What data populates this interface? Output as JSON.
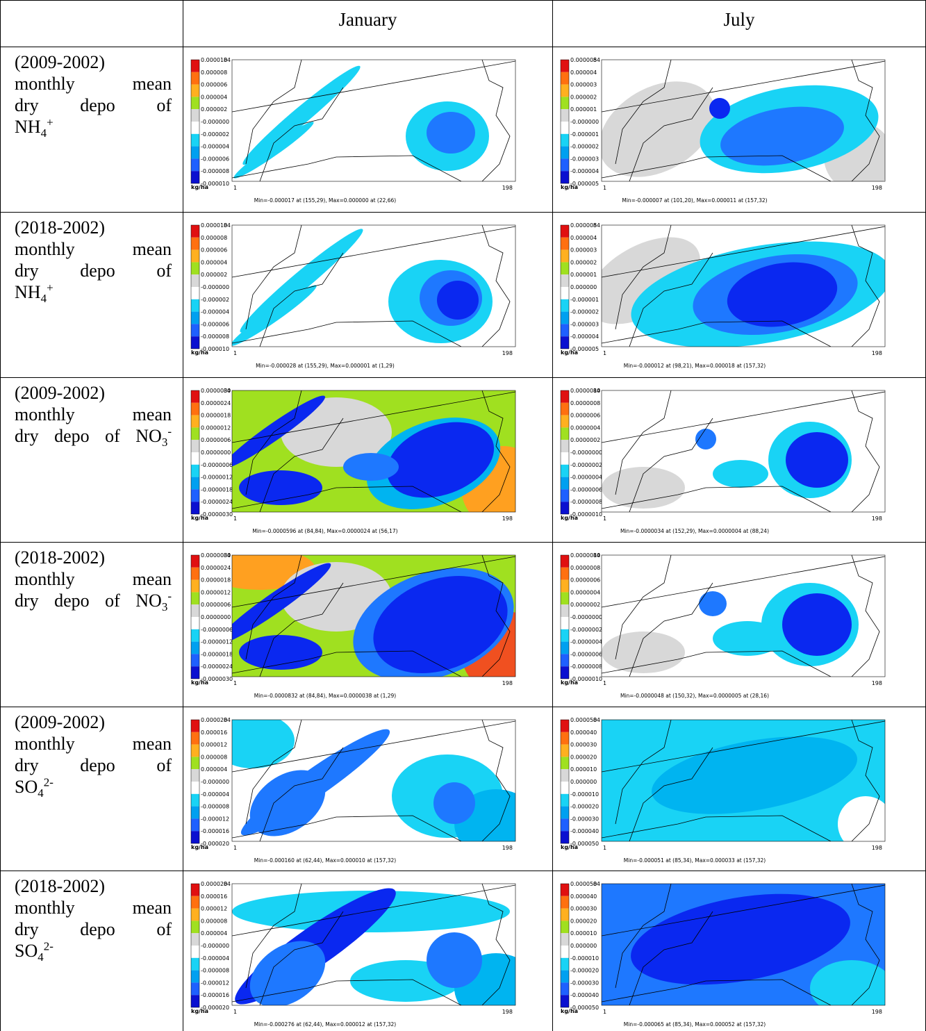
{
  "header": {
    "january": "January",
    "july": "July"
  },
  "map_axes": {
    "unit": "kg/ha",
    "x_start": "1",
    "x_end": "198",
    "y_end": "84"
  },
  "rows": [
    {
      "label": [
        [
          "(2009-2002)"
        ],
        [
          "monthly mean"
        ],
        [
          "dry depo of"
        ],
        [
          "NH",
          {
            "sub": "4"
          },
          {
            "sup": "+"
          }
        ]
      ],
      "january": {
        "colorbar": [
          "0.000010",
          "0.000008",
          "0.000006",
          "0.000004",
          "0.000002",
          "-0.000000",
          "-0.000002",
          "-0.000004",
          "-0.000006",
          "-0.000008",
          "-0.000010"
        ],
        "caption": "Min=-0.000017 at (155,29), Max=0.000000 at (22,66)"
      },
      "july": {
        "colorbar": [
          "0.000005",
          "0.000004",
          "0.000003",
          "0.000002",
          "0.000001",
          "-0.000000",
          "-0.000001",
          "-0.000002",
          "-0.000003",
          "-0.000004",
          "-0.000005"
        ],
        "caption": "Min=-0.000007 at (101,20), Max=0.000011 at (157,32)"
      }
    },
    {
      "label": [
        [
          "(2018-2002)"
        ],
        [
          "monthly mean"
        ],
        [
          "dry depo of"
        ],
        [
          "NH",
          {
            "sub": "4"
          },
          {
            "sup": "+"
          }
        ]
      ],
      "january": {
        "colorbar": [
          "0.000010",
          "0.000008",
          "0.000006",
          "0.000004",
          "0.000002",
          "-0.000000",
          "-0.000002",
          "-0.000004",
          "-0.000006",
          "-0.000008",
          "-0.000010"
        ],
        "caption": "Min=-0.000028 at (155,29), Max=0.000001 at (1,29)"
      },
      "july": {
        "colorbar": [
          "0.000005",
          "0.000004",
          "0.000003",
          "0.000002",
          "0.000001",
          "0.000000",
          "-0.000001",
          "-0.000002",
          "-0.000003",
          "-0.000004",
          "-0.000005"
        ],
        "caption": "Min=-0.000012 at (98,21), Max=0.000018 at (157,32)"
      }
    },
    {
      "label": [
        [
          "(2009-2002)"
        ],
        [
          "monthly mean"
        ],
        [
          "dry depo of NO",
          {
            "sub": "3"
          },
          {
            "sup": "-"
          }
        ]
      ],
      "january": {
        "colorbar": [
          "0.0000030",
          "0.0000024",
          "0.0000018",
          "0.0000012",
          "0.0000006",
          "0.0000000",
          "-0.0000006",
          "-0.0000012",
          "-0.0000018",
          "-0.0000024",
          "-0.0000030"
        ],
        "caption": "Min=-0.0000596 at (84,84), Max=0.0000024 at (56,17)"
      },
      "july": {
        "colorbar": [
          "0.0000010",
          "0.0000008",
          "0.0000006",
          "0.0000004",
          "0.0000002",
          "-0.0000000",
          "-0.0000002",
          "-0.0000004",
          "-0.0000006",
          "-0.0000008",
          "-0.0000010"
        ],
        "caption": "Min=-0.0000034 at (152,29), Max=0.0000004 at (88,24)"
      }
    },
    {
      "label": [
        [
          "(2018-2002)"
        ],
        [
          "monthly mean"
        ],
        [
          "dry depo of NO",
          {
            "sub": "3"
          },
          {
            "sup": "-"
          }
        ]
      ],
      "january": {
        "colorbar": [
          "0.0000030",
          "0.0000024",
          "0.0000018",
          "0.0000012",
          "0.0000006",
          "0.0000000",
          "-0.0000006",
          "-0.0000012",
          "-0.0000018",
          "-0.0000024",
          "-0.0000030"
        ],
        "caption": "Min=-0.0000832 at (84,84), Max=0.0000038 at (1,29)"
      },
      "july": {
        "colorbar": [
          "0.0000010",
          "0.0000008",
          "0.0000006",
          "0.0000004",
          "0.0000002",
          "-0.0000000",
          "-0.0000002",
          "-0.0000004",
          "-0.0000006",
          "-0.0000008",
          "-0.0000010"
        ],
        "caption": "Min=-0.0000048 at (150,32), Max=0.0000005 at (28,16)"
      }
    },
    {
      "label": [
        [
          "(2009-2002)"
        ],
        [
          "monthly mean"
        ],
        [
          "dry depo of"
        ],
        [
          "SO",
          {
            "sub": "4"
          },
          {
            "sup": "2-"
          }
        ]
      ],
      "january": {
        "colorbar": [
          "0.000020",
          "0.000016",
          "0.000012",
          "0.000008",
          "0.000004",
          "-0.000000",
          "-0.000004",
          "-0.000008",
          "-0.000012",
          "-0.000016",
          "-0.000020"
        ],
        "caption": "Min=-0.000160 at (62,44), Max=0.000010 at (157,32)"
      },
      "july": {
        "colorbar": [
          "0.000050",
          "0.000040",
          "0.000030",
          "0.000020",
          "0.000010",
          "0.000000",
          "-0.000010",
          "-0.000020",
          "-0.000030",
          "-0.000040",
          "-0.000050"
        ],
        "caption": "Min=-0.000051 at (85,34), Max=0.000033 at (157,32)"
      }
    },
    {
      "label": [
        [
          "(2018-2002)"
        ],
        [
          "monthly mean"
        ],
        [
          "dry depo of"
        ],
        [
          "SO",
          {
            "sub": "4"
          },
          {
            "sup": "2-"
          }
        ]
      ],
      "january": {
        "colorbar": [
          "0.000020",
          "0.000016",
          "0.000012",
          "0.000008",
          "0.000004",
          "-0.000000",
          "-0.000004",
          "-0.000008",
          "-0.000012",
          "-0.000016",
          "-0.000020"
        ],
        "caption": "Min=-0.000276 at (62,44), Max=0.000012 at (157,32)"
      },
      "july": {
        "colorbar": [
          "0.000050",
          "0.000040",
          "0.000030",
          "0.000020",
          "0.000010",
          "0.000000",
          "-0.000010",
          "-0.000020",
          "-0.000030",
          "-0.000040",
          "-0.000050"
        ],
        "caption": "Min=-0.000065 at (85,34), Max=0.000052 at (157,32)"
      }
    }
  ]
}
